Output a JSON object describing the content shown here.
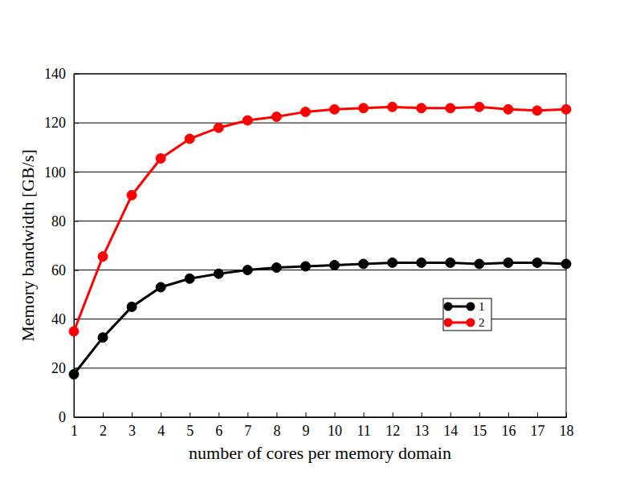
{
  "chart_data": {
    "type": "line",
    "x_label": "number of cores per memory domain",
    "y_label": "Memory bandwidth [GB/s]",
    "x": [
      1,
      2,
      3,
      4,
      5,
      6,
      7,
      8,
      9,
      10,
      11,
      12,
      13,
      14,
      15,
      16,
      17,
      18
    ],
    "series": [
      {
        "name": "1",
        "color": "#000000",
        "marker": "circle",
        "line_style": "solid",
        "values": [
          17.5,
          32.5,
          45,
          53,
          56.5,
          58.5,
          60,
          61,
          61.5,
          62,
          62.5,
          63,
          63,
          63,
          62.5,
          63,
          63,
          62.5
        ]
      },
      {
        "name": "2",
        "color": "#ff0000",
        "marker": "circle",
        "line_style": "solid",
        "values": [
          35,
          65.5,
          90.5,
          105.5,
          113.5,
          118,
          121,
          122.5,
          124.5,
          125.5,
          126,
          126.5,
          126,
          126,
          126.5,
          125.5,
          125,
          125.5
        ]
      }
    ],
    "xlim": [
      1,
      18
    ],
    "xticks": [
      1,
      2,
      3,
      4,
      5,
      6,
      7,
      8,
      9,
      10,
      11,
      12,
      13,
      14,
      15,
      16,
      17,
      18
    ],
    "ylim": [
      0,
      140
    ],
    "yticks": [
      0,
      20,
      40,
      60,
      80,
      100,
      120,
      140
    ],
    "grid": true,
    "legend": "lower right"
  }
}
